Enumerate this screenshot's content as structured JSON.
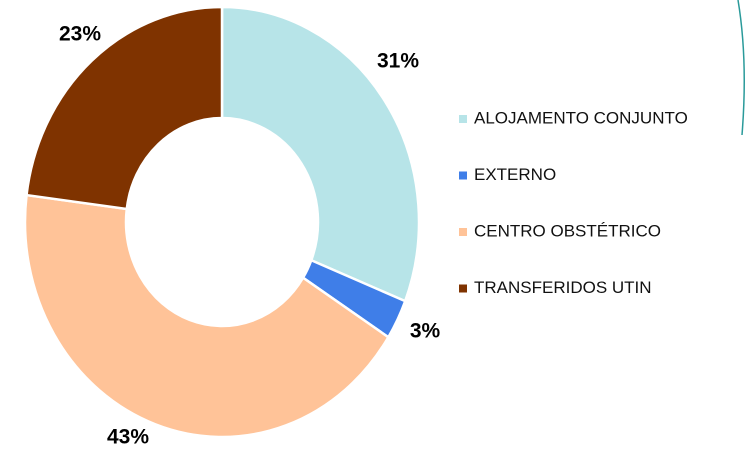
{
  "chart_data": {
    "type": "donut",
    "categories": [
      "ALOJAMENTO CONJUNTO",
      "EXTERNO",
      "CENTRO OBSTÉTRICO",
      "TRANSFERIDOS UTIN"
    ],
    "values": [
      31,
      3,
      43,
      23
    ],
    "value_labels": [
      "31%",
      "3%",
      "43%",
      "23%"
    ],
    "colors": [
      "#b7e4e8",
      "#3f7ee8",
      "#ffc398",
      "#7f3300"
    ],
    "legend": "right"
  }
}
